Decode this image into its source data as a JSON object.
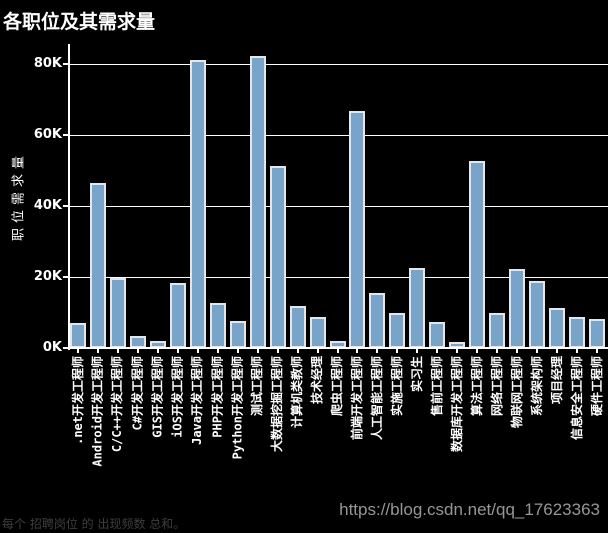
{
  "page": {
    "background": "#000000"
  },
  "footer": {
    "note": "每个 招聘岗位 的 出现频数 总和。",
    "watermark": "https://blog.csdn.net/qq_17623363"
  },
  "chart_data": {
    "type": "bar",
    "title": "各职位及其需求量",
    "xlabel": "",
    "ylabel": "职位需求量",
    "categories": [
      ".net开发工程师",
      "Android开发工程师",
      "C/C++开发工程师",
      "C#开发工程师",
      "GIS开发工程师",
      "iOS开发工程师",
      "Java开发工程师",
      "PHP开发工程师",
      "Python开发工程师",
      "测试工程师",
      "大数据挖掘工程师",
      "计算机类教师",
      "技术经理",
      "爬虫工程师",
      "前端开发工程师",
      "人工智能工程师",
      "实施工程师",
      "实习生",
      "售前工程师",
      "数据库开发工程师",
      "算法工程师",
      "网络工程师",
      "物联网工程师",
      "系统架构师",
      "项目经理",
      "信息安全工程师",
      "硬件工程师"
    ],
    "values": [
      7000,
      46400,
      19600,
      3400,
      2000,
      18400,
      81200,
      12600,
      7600,
      82200,
      51400,
      11900,
      8600,
      2100,
      66800,
      15400,
      9900,
      22400,
      7400,
      1800,
      52600,
      9900,
      22200,
      19000,
      11400,
      8800,
      8200
    ],
    "ytick_values": [
      0,
      20000,
      40000,
      60000,
      80000
    ],
    "ytick_labels": [
      "0K",
      "20K",
      "40K",
      "60K",
      "80K"
    ],
    "ylim": [
      0,
      85600
    ],
    "grid": true,
    "legend": "none",
    "background_color": "#000000",
    "bar_color": "#79a4ca",
    "bar_edge_color": "#e6e6e6",
    "axis_color": "#ffffff",
    "text_color": "#ffffff"
  }
}
